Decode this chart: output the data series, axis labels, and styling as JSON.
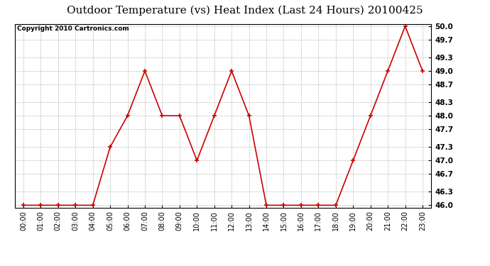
{
  "title": "Outdoor Temperature (vs) Heat Index (Last 24 Hours) 20100425",
  "copyright": "Copyright 2010 Cartronics.com",
  "x_labels": [
    "00:00",
    "01:00",
    "02:00",
    "03:00",
    "04:00",
    "05:00",
    "06:00",
    "07:00",
    "08:00",
    "09:00",
    "10:00",
    "11:00",
    "12:00",
    "13:00",
    "14:00",
    "15:00",
    "16:00",
    "17:00",
    "18:00",
    "19:00",
    "20:00",
    "21:00",
    "22:00",
    "23:00"
  ],
  "y_values": [
    46.0,
    46.0,
    46.0,
    46.0,
    46.0,
    47.3,
    48.0,
    49.0,
    48.0,
    48.0,
    47.0,
    48.0,
    49.0,
    48.0,
    46.0,
    46.0,
    46.0,
    46.0,
    46.0,
    47.0,
    48.0,
    49.0,
    50.0,
    49.0
  ],
  "y_min": 46.0,
  "y_max": 50.0,
  "y_ticks": [
    46.0,
    46.3,
    46.7,
    47.0,
    47.3,
    47.7,
    48.0,
    48.3,
    48.7,
    49.0,
    49.3,
    49.7,
    50.0
  ],
  "line_color": "#cc0000",
  "marker": "+",
  "bg_color": "#ffffff",
  "plot_bg_color": "#ffffff",
  "grid_color": "#bbbbbb",
  "title_fontsize": 11,
  "copyright_fontsize": 6.5,
  "tick_fontsize": 7,
  "ytick_fontsize": 7.5
}
